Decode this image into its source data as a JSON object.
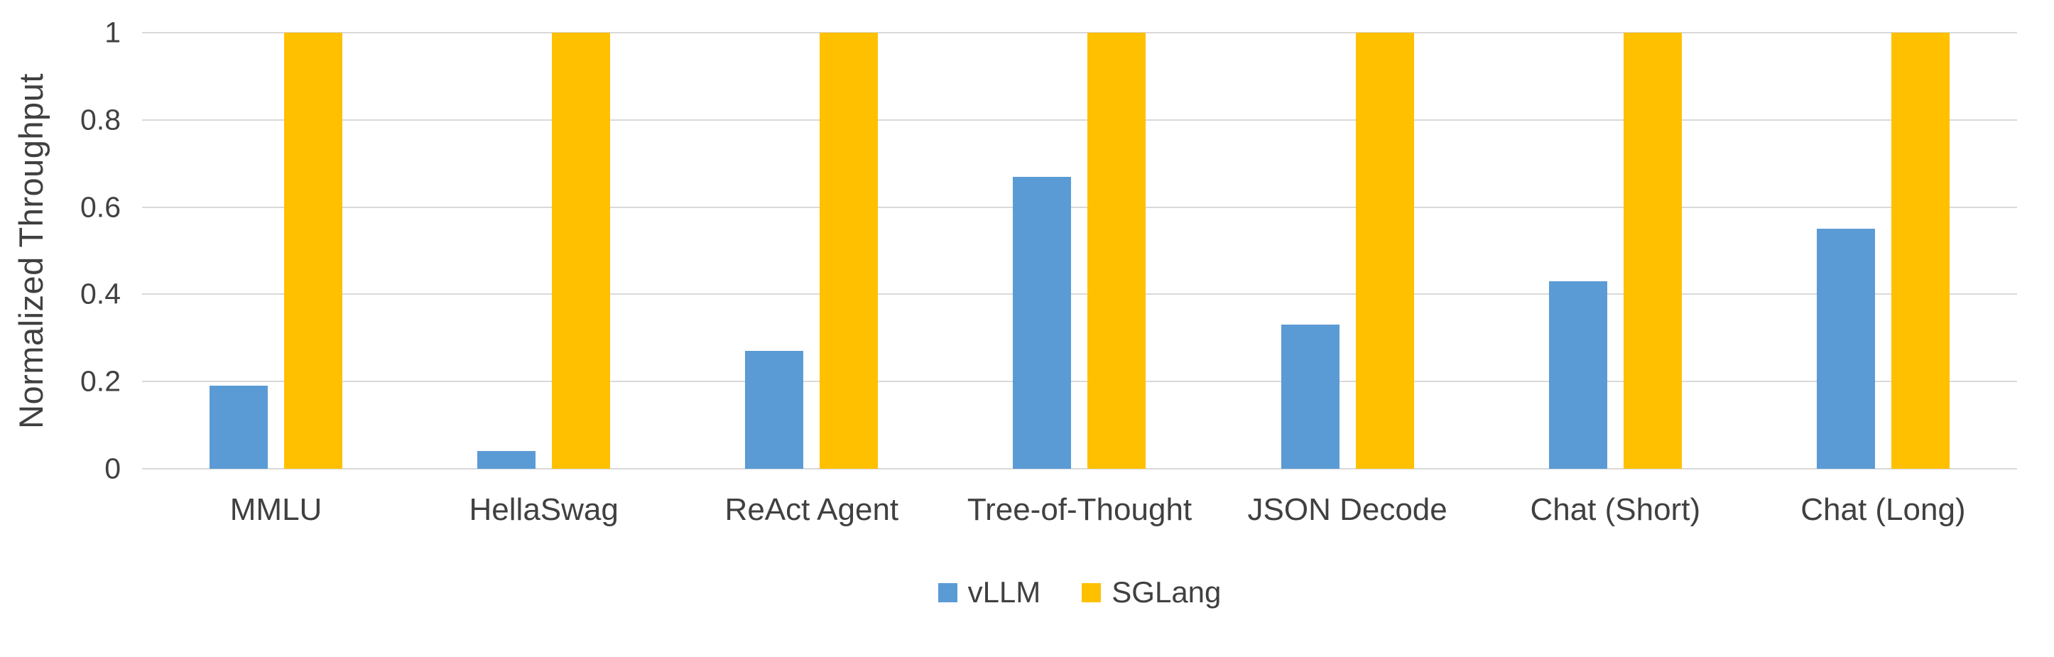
{
  "chart_data": {
    "type": "bar",
    "title": "",
    "xlabel": "",
    "ylabel": "Normalized Throughput",
    "categories": [
      "MMLU",
      "HellaSwag",
      "ReAct Agent",
      "Tree-of-Thought",
      "JSON Decode",
      "Chat (Short)",
      "Chat (Long)"
    ],
    "series": [
      {
        "name": "vLLM",
        "color": "#5B9BD5",
        "values": [
          0.19,
          0.04,
          0.27,
          0.67,
          0.33,
          0.43,
          0.55
        ]
      },
      {
        "name": "SGLang",
        "color": "#FFC000",
        "values": [
          1,
          1,
          1,
          1,
          1,
          1,
          1
        ]
      }
    ],
    "ylim": [
      0,
      1
    ],
    "yticks": [
      0,
      0.2,
      0.4,
      0.6,
      0.8,
      1
    ],
    "ytick_labels": [
      "0",
      "0.2",
      "0.4",
      "0.6",
      "0.8",
      "1"
    ],
    "grid": true,
    "legend_position": "bottom"
  }
}
